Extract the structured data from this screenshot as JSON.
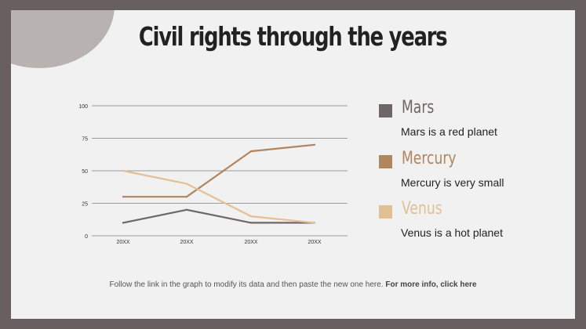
{
  "title": "Civil rights through the years",
  "colors": {
    "frame": "#686060",
    "slide": "#f1f1f1",
    "blob": "#b8b3b0",
    "grid": "#9a9a9a",
    "mars": "#6f6666",
    "mercury": "#b08660",
    "venus": "#e3bf96"
  },
  "legend": [
    {
      "name": "Mars",
      "desc": "Mars is a red planet",
      "color": "#6f6666"
    },
    {
      "name": "Mercury",
      "desc": "Mercury is very small",
      "color": "#b08660"
    },
    {
      "name": "Venus",
      "desc": "Venus is a hot planet",
      "color": "#e3bf96"
    }
  ],
  "footer": {
    "text": "Follow the link in the graph to modify its data and then paste the new one here.",
    "link": "For more info, click here"
  },
  "chart_data": {
    "type": "line",
    "title": "",
    "xlabel": "",
    "ylabel": "",
    "categories": [
      "20XX",
      "20XX",
      "20XX",
      "20XX"
    ],
    "ylim": [
      0,
      100
    ],
    "yticks": [
      0,
      25,
      50,
      75,
      100
    ],
    "grid": true,
    "legend": "right",
    "series": [
      {
        "name": "Mars",
        "color": "#6f6666",
        "values": [
          10,
          20,
          10,
          10
        ]
      },
      {
        "name": "Mercury",
        "color": "#b08660",
        "values": [
          30,
          30,
          65,
          70
        ]
      },
      {
        "name": "Venus",
        "color": "#e3bf96",
        "values": [
          50,
          40,
          15,
          10
        ]
      }
    ]
  }
}
